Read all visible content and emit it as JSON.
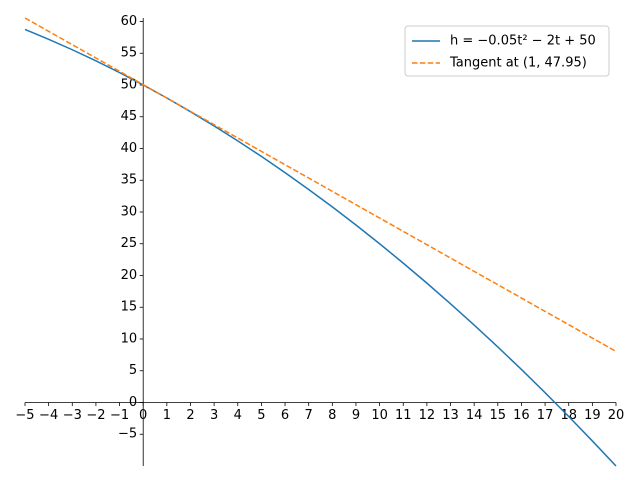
{
  "chart_data": {
    "type": "line",
    "x": [
      -5,
      -4,
      -3,
      -2,
      -1,
      0,
      1,
      2,
      3,
      4,
      5,
      6,
      7,
      8,
      9,
      10,
      11,
      12,
      13,
      14,
      15,
      16,
      17,
      18,
      19,
      20
    ],
    "series": [
      {
        "name": "h = −0.05t² − 2t + 50",
        "color": "#1f77b4",
        "dash": false,
        "values": [
          58.75,
          57.2,
          55.55,
          53.8,
          51.95,
          50,
          47.95,
          45.8,
          43.55,
          41.2,
          38.75,
          36.2,
          33.55,
          30.8,
          27.95,
          25,
          21.95,
          18.8,
          15.55,
          12.2,
          8.75,
          5.2,
          1.55,
          -2.2,
          -6.05,
          -10
        ]
      },
      {
        "name": "Tangent at (1, 47.95)",
        "color": "#ff7f0e",
        "dash": true,
        "values": [
          60.55,
          58.45,
          56.35,
          54.25,
          52.15,
          50.05,
          47.95,
          45.85,
          43.75,
          41.65,
          39.55,
          37.45,
          35.35,
          33.25,
          31.15,
          29.05,
          26.95,
          24.85,
          22.75,
          20.65,
          18.55,
          16.45,
          14.35,
          12.25,
          10.15,
          8.05
        ]
      }
    ],
    "xlim": [
      -5,
      20
    ],
    "ylim": [
      -10,
      60.55
    ],
    "xticks": [
      {
        "value": -5,
        "label": "−5"
      },
      {
        "value": -4,
        "label": "−4"
      },
      {
        "value": -3,
        "label": "−3"
      },
      {
        "value": -2,
        "label": "−2"
      },
      {
        "value": -1,
        "label": "−1"
      },
      0,
      1,
      2,
      3,
      4,
      5,
      6,
      7,
      8,
      9,
      10,
      11,
      12,
      13,
      14,
      15,
      16,
      17,
      18,
      19,
      20
    ],
    "yticks": [
      {
        "value": -5,
        "label": "−5"
      },
      0,
      5,
      10,
      15,
      20,
      25,
      30,
      35,
      40,
      45,
      50,
      55,
      60
    ],
    "legend": "upper right",
    "grid": false
  }
}
